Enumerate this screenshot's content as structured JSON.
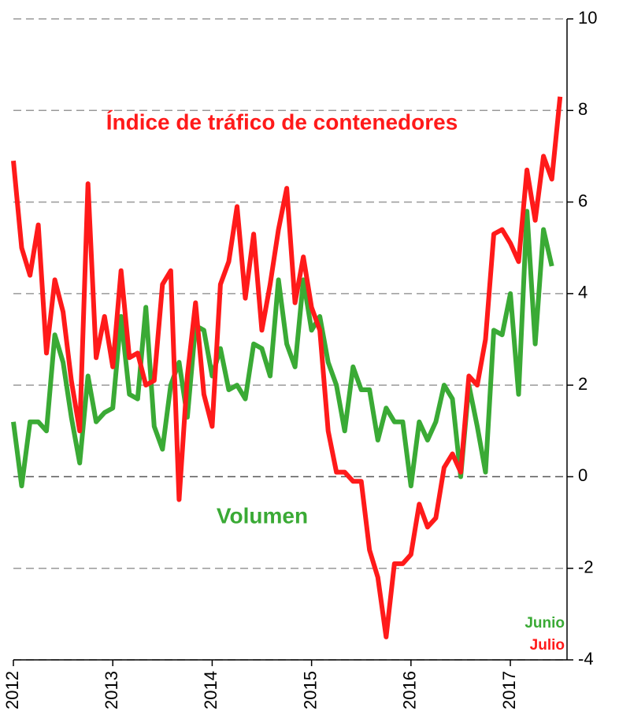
{
  "chart_data": {
    "type": "line",
    "annotations": [
      "Índice de tráfico de contenedores",
      "Volumen",
      "Junio",
      "Julio"
    ],
    "x": [
      2012,
      2012.083,
      2012.167,
      2012.25,
      2012.333,
      2012.417,
      2012.5,
      2012.583,
      2012.667,
      2012.75,
      2012.833,
      2012.917,
      2013,
      2013.083,
      2013.167,
      2013.25,
      2013.333,
      2013.417,
      2013.5,
      2013.583,
      2013.667,
      2013.75,
      2013.833,
      2013.917,
      2014,
      2014.083,
      2014.167,
      2014.25,
      2014.333,
      2014.417,
      2014.5,
      2014.583,
      2014.667,
      2014.75,
      2014.833,
      2014.917,
      2015,
      2015.083,
      2015.167,
      2015.25,
      2015.333,
      2015.417,
      2015.5,
      2015.583,
      2015.667,
      2015.75,
      2015.833,
      2015.917,
      2016,
      2016.083,
      2016.167,
      2016.25,
      2016.333,
      2016.417,
      2016.5,
      2016.583,
      2016.667,
      2016.75,
      2016.833,
      2016.917,
      2017,
      2017.083,
      2017.167,
      2017.25,
      2017.333,
      2017.417,
      2017.5
    ],
    "series": [
      {
        "name": "Volumen",
        "color": "#3aaa35",
        "values": [
          1.2,
          -0.2,
          1.2,
          1.2,
          1.0,
          3.1,
          2.5,
          1.3,
          0.3,
          2.2,
          1.2,
          1.4,
          1.5,
          3.5,
          1.8,
          1.7,
          3.7,
          1.1,
          0.6,
          2.0,
          2.5,
          1.3,
          3.3,
          3.2,
          2.2,
          2.8,
          1.9,
          2.0,
          1.7,
          2.9,
          2.8,
          2.2,
          4.3,
          2.9,
          2.4,
          4.3,
          3.2,
          3.5,
          2.5,
          2.0,
          1.0,
          2.4,
          1.9,
          1.9,
          0.8,
          1.5,
          1.2,
          1.2,
          -0.2,
          1.2,
          0.8,
          1.2,
          2.0,
          1.7,
          0.0,
          2.0,
          1.1,
          0.1,
          3.2,
          3.1,
          4.0,
          1.8,
          5.8,
          2.9,
          5.4,
          4.6,
          null
        ]
      },
      {
        "name": "Índice de tráfico de contenedores",
        "color": "#ff1a1a",
        "values": [
          6.9,
          5.0,
          4.4,
          5.5,
          2.7,
          4.3,
          3.6,
          2.1,
          1.0,
          6.4,
          2.6,
          3.5,
          2.4,
          4.5,
          2.6,
          2.7,
          2.0,
          2.1,
          4.2,
          4.5,
          -0.5,
          2.2,
          3.8,
          1.8,
          1.1,
          4.2,
          4.7,
          5.9,
          3.9,
          5.3,
          3.2,
          4.2,
          5.4,
          6.3,
          3.8,
          4.8,
          3.7,
          3.2,
          1.0,
          0.1,
          0.1,
          -0.1,
          -0.1,
          -1.6,
          -2.2,
          -3.5,
          -1.9,
          -1.9,
          -1.7,
          -0.6,
          -1.1,
          -0.9,
          0.2,
          0.5,
          0.1,
          2.2,
          2.0,
          3.0,
          5.3,
          5.4,
          5.1,
          4.7,
          6.7,
          5.6,
          7.0,
          6.5,
          8.3
        ]
      }
    ],
    "xlim": [
      2012,
      2017.57
    ],
    "xticks": [
      2012,
      2013,
      2014,
      2015,
      2016,
      2017
    ],
    "ylim": [
      -4,
      10
    ],
    "yticks": [
      -4,
      -2,
      0,
      2,
      4,
      6,
      8,
      10
    ],
    "grid": true
  }
}
